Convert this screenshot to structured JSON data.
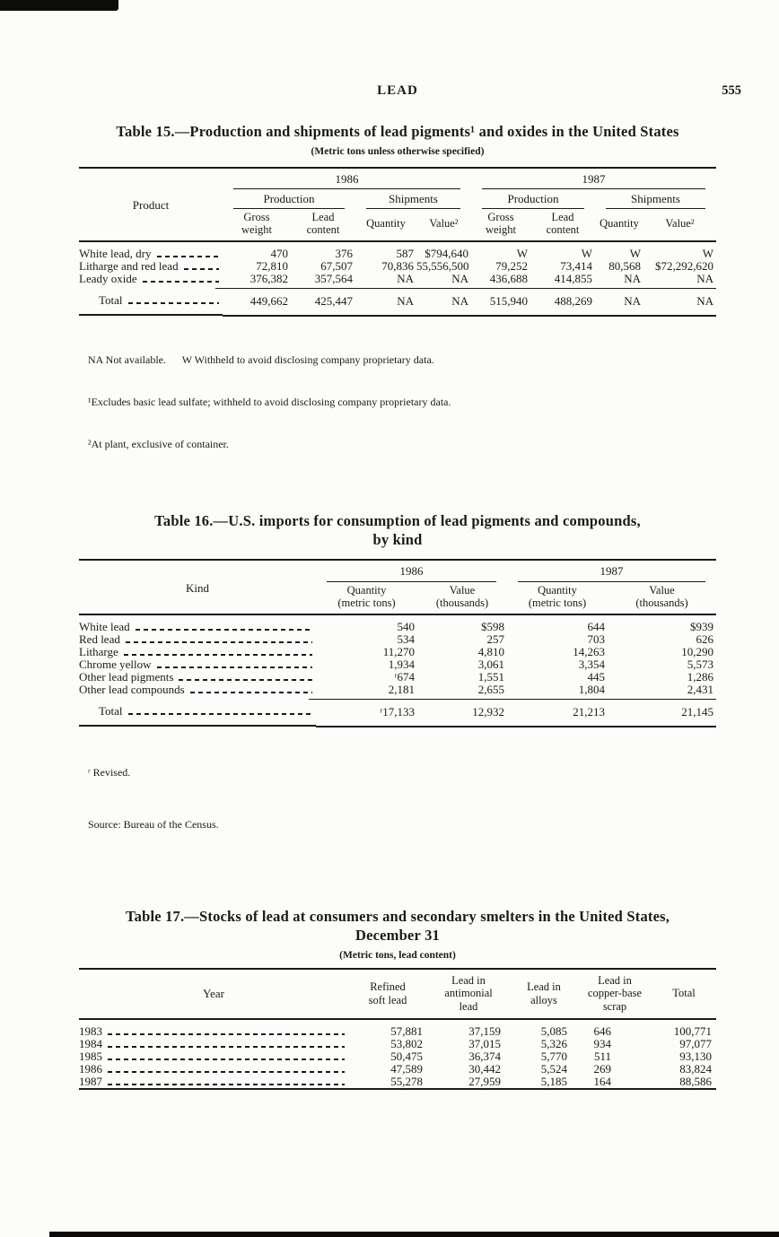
{
  "page": {
    "running_head": "LEAD",
    "page_number": "555"
  },
  "table15": {
    "title": "Table 15.—Production and shipments of lead pigments¹ and oxides in the United States",
    "subtitle": "(Metric tons unless otherwise specified)",
    "stub": "Product",
    "years": [
      "1986",
      "1987"
    ],
    "groups": [
      "Production",
      "Shipments",
      "Production",
      "Shipments"
    ],
    "columns": [
      "Gross\nweight",
      "Lead\ncontent",
      "Quantity",
      "Value²",
      "Gross\nweight",
      "Lead\ncontent",
      "Quantity",
      "Value²"
    ],
    "rows": [
      {
        "label": "White lead, dry",
        "values": [
          "470",
          "376",
          "587",
          "$794,640",
          "W",
          "W",
          "W",
          "W"
        ]
      },
      {
        "label": "Litharge and red lead",
        "values": [
          "72,810",
          "67,507",
          "70,836",
          "55,556,500",
          "79,252",
          "73,414",
          "80,568",
          "$72,292,620"
        ]
      },
      {
        "label": "Leady oxide",
        "values": [
          "376,382",
          "357,564",
          "NA",
          "NA",
          "436,688",
          "414,855",
          "NA",
          "NA"
        ]
      },
      {
        "label": "Total",
        "total": true,
        "values": [
          "449,662",
          "425,447",
          "NA",
          "NA",
          "515,940",
          "488,269",
          "NA",
          "NA"
        ]
      }
    ],
    "footnotes": [
      "NA Not available.      W Withheld to avoid disclosing company proprietary data.",
      "¹Excludes basic lead sulfate; withheld to avoid disclosing company proprietary data.",
      "²At plant, exclusive of container."
    ]
  },
  "table16": {
    "title": "Table 16.—U.S. imports for consumption of lead pigments and compounds,\nby kind",
    "stub": "Kind",
    "years": [
      "1986",
      "1987"
    ],
    "columns": [
      "Quantity\n(metric tons)",
      "Value\n(thousands)",
      "Quantity\n(metric tons)",
      "Value\n(thousands)"
    ],
    "rows": [
      {
        "label": "White lead",
        "values": [
          "540",
          "$598",
          "644",
          "$939"
        ]
      },
      {
        "label": "Red lead",
        "values": [
          "534",
          "257",
          "703",
          "626"
        ]
      },
      {
        "label": "Litharge",
        "values": [
          "11,270",
          "4,810",
          "14,263",
          "10,290"
        ]
      },
      {
        "label": "Chrome yellow",
        "values": [
          "1,934",
          "3,061",
          "3,354",
          "5,573"
        ]
      },
      {
        "label": "Other lead pigments",
        "values": [
          "ʳ674",
          "1,551",
          "445",
          "1,286"
        ]
      },
      {
        "label": "Other lead compounds",
        "values": [
          "2,181",
          "2,655",
          "1,804",
          "2,431"
        ]
      },
      {
        "label": "Total",
        "total": true,
        "values": [
          "ʳ17,133",
          "12,932",
          "21,213",
          "21,145"
        ]
      }
    ],
    "footnotes": [
      "ʳ Revised.",
      "Source: Bureau of the Census."
    ]
  },
  "table17": {
    "title": "Table 17.—Stocks of lead at consumers and secondary smelters in the United States,\nDecember 31",
    "subtitle": "(Metric tons, lead content)",
    "columns": [
      "Year",
      "Refined\nsoft lead",
      "Lead in\nantimonial\nlead",
      "Lead in\nalloys",
      "Lead in\ncopper-base\nscrap",
      "Total"
    ],
    "rows": [
      {
        "label": "1983",
        "values": [
          "57,881",
          "37,159",
          "5,085",
          "646",
          "100,771"
        ]
      },
      {
        "label": "1984",
        "values": [
          "53,802",
          "37,015",
          "5,326",
          "934",
          "97,077"
        ]
      },
      {
        "label": "1985",
        "values": [
          "50,475",
          "36,374",
          "5,770",
          "511",
          "93,130"
        ]
      },
      {
        "label": "1986",
        "values": [
          "47,589",
          "30,442",
          "5,524",
          "269",
          "83,824"
        ]
      },
      {
        "label": "1987",
        "values": [
          "55,278",
          "27,959",
          "5,185",
          "164",
          "88,586"
        ]
      }
    ]
  }
}
